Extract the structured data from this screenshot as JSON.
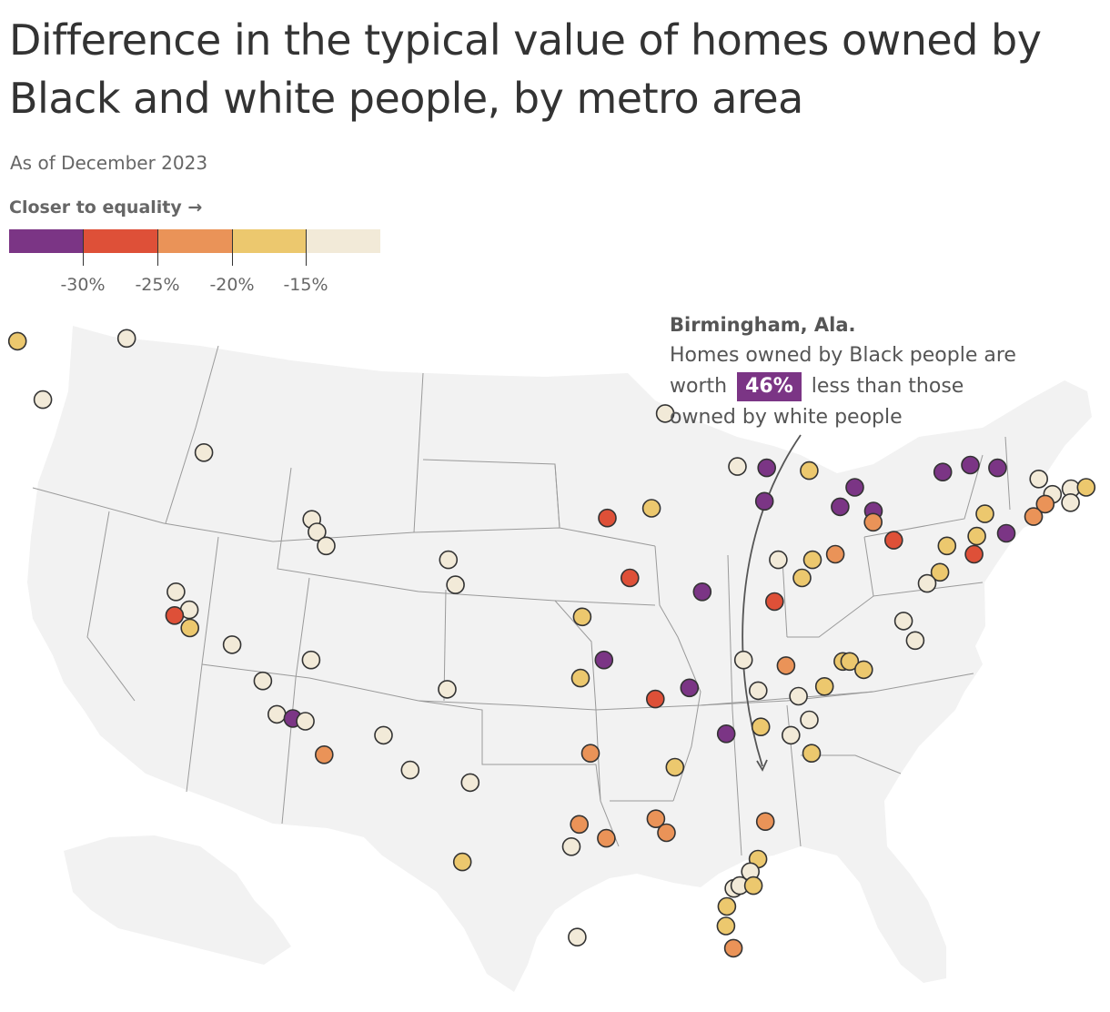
{
  "title": "Difference in the typical value of homes owned by Black and white people, by metro area",
  "subtitle": "As of December 2023",
  "legend": {
    "title": "Closer to equality →",
    "colors": [
      "#7b3585",
      "#de5038",
      "#ea9358",
      "#ecc86e",
      "#f2ead8"
    ],
    "ticks": [
      "-30%",
      "-25%",
      "-20%",
      "-15%"
    ]
  },
  "annotation": {
    "city": "Birmingham, Ala.",
    "line1": "Homes owned by Black people are",
    "prefix": "worth",
    "value": "46%",
    "suffix": "less than those",
    "line3": "owned by white people"
  },
  "map": {
    "background_color": "#f2f2f2",
    "border_color": "#9a9a9a",
    "marker_outline": "#333333",
    "metros": [
      {
        "name": "Seattle",
        "lon": -122.3,
        "lat": 47.6,
        "bin": 3
      },
      {
        "name": "Spokane",
        "lon": -117.4,
        "lat": 47.7,
        "bin": 4
      },
      {
        "name": "Portland",
        "lon": -122.7,
        "lat": 45.5,
        "bin": 4
      },
      {
        "name": "Boise",
        "lon": -116.2,
        "lat": 43.6,
        "bin": 4
      },
      {
        "name": "Sacramento",
        "lon": -121.5,
        "lat": 38.6,
        "bin": 4
      },
      {
        "name": "Stockton",
        "lon": -121.3,
        "lat": 37.95,
        "bin": 4
      },
      {
        "name": "San Francisco",
        "lon": -122.4,
        "lat": 37.75,
        "bin": 1
      },
      {
        "name": "San Jose",
        "lon": -121.9,
        "lat": 37.3,
        "bin": 3
      },
      {
        "name": "Fresno",
        "lon": -119.8,
        "lat": 36.7,
        "bin": 4
      },
      {
        "name": "Bakersfield",
        "lon": -119.0,
        "lat": 35.4,
        "bin": 4
      },
      {
        "name": "Oxnard",
        "lon": -119.2,
        "lat": 34.2,
        "bin": 4
      },
      {
        "name": "Los Angeles",
        "lon": -118.2,
        "lat": 34.05,
        "bin": 0
      },
      {
        "name": "Riverside",
        "lon": -117.4,
        "lat": 33.95,
        "bin": 4
      },
      {
        "name": "San Diego",
        "lon": -117.15,
        "lat": 32.75,
        "bin": 2
      },
      {
        "name": "Las Vegas",
        "lon": -115.15,
        "lat": 36.15,
        "bin": 4
      },
      {
        "name": "Phoenix",
        "lon": -112.1,
        "lat": 33.45,
        "bin": 4
      },
      {
        "name": "Tucson",
        "lon": -110.95,
        "lat": 32.2,
        "bin": 4
      },
      {
        "name": "Ogden",
        "lon": -111.95,
        "lat": 41.2,
        "bin": 4
      },
      {
        "name": "Salt Lake City",
        "lon": -111.9,
        "lat": 40.75,
        "bin": 4
      },
      {
        "name": "Provo",
        "lon": -111.65,
        "lat": 40.25,
        "bin": 4
      },
      {
        "name": "Denver",
        "lon": -104.95,
        "lat": 39.75,
        "bin": 4
      },
      {
        "name": "Colorado Springs",
        "lon": -104.8,
        "lat": 38.85,
        "bin": 4
      },
      {
        "name": "Albuquerque",
        "lon": -106.65,
        "lat": 35.1,
        "bin": 4
      },
      {
        "name": "El Paso",
        "lon": -106.45,
        "lat": 31.75,
        "bin": 4
      },
      {
        "name": "Honolulu",
        "lon": -108.8,
        "lat": 28.9,
        "bin": 3
      },
      {
        "name": "Omaha",
        "lon": -95.95,
        "lat": 41.25,
        "bin": 1
      },
      {
        "name": "Des Moines",
        "lon": -93.6,
        "lat": 41.6,
        "bin": 3
      },
      {
        "name": "Kansas City",
        "lon": -94.55,
        "lat": 39.1,
        "bin": 1
      },
      {
        "name": "Wichita",
        "lon": -97.35,
        "lat": 37.7,
        "bin": 3
      },
      {
        "name": "Tulsa",
        "lon": -95.95,
        "lat": 36.15,
        "bin": 0
      },
      {
        "name": "Oklahoma City",
        "lon": -97.5,
        "lat": 35.5,
        "bin": 3
      },
      {
        "name": "Minneapolis",
        "lon": -93.3,
        "lat": 45.0,
        "bin": 4
      },
      {
        "name": "Madison",
        "lon": -89.4,
        "lat": 43.1,
        "bin": 4
      },
      {
        "name": "Milwaukee",
        "lon": -87.9,
        "lat": 43.05,
        "bin": 0
      },
      {
        "name": "Chicago",
        "lon": -87.65,
        "lat": 41.85,
        "bin": 0
      },
      {
        "name": "Grand Rapids",
        "lon": -85.7,
        "lat": 42.95,
        "bin": 3
      },
      {
        "name": "Detroit",
        "lon": -83.1,
        "lat": 42.35,
        "bin": 0
      },
      {
        "name": "Toledo",
        "lon": -83.55,
        "lat": 41.65,
        "bin": 0
      },
      {
        "name": "Cleveland",
        "lon": -81.7,
        "lat": 41.5,
        "bin": 0
      },
      {
        "name": "Akron",
        "lon": -81.5,
        "lat": 41.1,
        "bin": 2
      },
      {
        "name": "Columbus",
        "lon": -83.0,
        "lat": 39.95,
        "bin": 2
      },
      {
        "name": "Dayton",
        "lon": -84.2,
        "lat": 39.75,
        "bin": 3
      },
      {
        "name": "Cincinnati",
        "lon": -84.5,
        "lat": 39.1,
        "bin": 3
      },
      {
        "name": "Indianapolis",
        "lon": -86.15,
        "lat": 39.75,
        "bin": 4
      },
      {
        "name": "Louisville",
        "lon": -85.75,
        "lat": 38.25,
        "bin": 1
      },
      {
        "name": "St. Louis",
        "lon": -90.2,
        "lat": 38.6,
        "bin": 0
      },
      {
        "name": "Pittsburgh",
        "lon": -80.0,
        "lat": 40.45,
        "bin": 1
      },
      {
        "name": "Buffalo",
        "lon": -78.85,
        "lat": 42.9,
        "bin": 0
      },
      {
        "name": "Rochester",
        "lon": -77.6,
        "lat": 43.15,
        "bin": 0
      },
      {
        "name": "Syracuse",
        "lon": -76.15,
        "lat": 43.05,
        "bin": 0
      },
      {
        "name": "Albany",
        "lon": -73.75,
        "lat": 42.65,
        "bin": 4
      },
      {
        "name": "Worcester",
        "lon": -71.8,
        "lat": 42.3,
        "bin": 4
      },
      {
        "name": "Boston",
        "lon": -71.05,
        "lat": 42.35,
        "bin": 3
      },
      {
        "name": "Springfield MA",
        "lon": -72.6,
        "lat": 42.1,
        "bin": 4
      },
      {
        "name": "Providence",
        "lon": -71.4,
        "lat": 41.8,
        "bin": 4
      },
      {
        "name": "Hartford",
        "lon": -72.7,
        "lat": 41.75,
        "bin": 2
      },
      {
        "name": "New Haven",
        "lon": -72.95,
        "lat": 41.3,
        "bin": 2
      },
      {
        "name": "New York",
        "lon": -73.95,
        "lat": 40.7,
        "bin": 0
      },
      {
        "name": "Allentown",
        "lon": -75.5,
        "lat": 40.6,
        "bin": 3
      },
      {
        "name": "Scranton",
        "lon": -75.65,
        "lat": 41.4,
        "bin": 3
      },
      {
        "name": "Harrisburg",
        "lon": -76.9,
        "lat": 40.25,
        "bin": 3
      },
      {
        "name": "Philadelphia",
        "lon": -75.15,
        "lat": 39.95,
        "bin": 1
      },
      {
        "name": "Baltimore",
        "lon": -76.6,
        "lat": 39.3,
        "bin": 3
      },
      {
        "name": "Washington",
        "lon": -77.05,
        "lat": 38.9,
        "bin": 4
      },
      {
        "name": "Richmond",
        "lon": -77.45,
        "lat": 37.55,
        "bin": 4
      },
      {
        "name": "Virginia Beach",
        "lon": -76.15,
        "lat": 36.85,
        "bin": 4
      },
      {
        "name": "Winston-Salem",
        "lon": -80.25,
        "lat": 36.1,
        "bin": 3
      },
      {
        "name": "Greensboro",
        "lon": -79.8,
        "lat": 36.1,
        "bin": 3
      },
      {
        "name": "Raleigh",
        "lon": -78.65,
        "lat": 35.8,
        "bin": 3
      },
      {
        "name": "Charlotte",
        "lon": -80.85,
        "lat": 35.2,
        "bin": 3
      },
      {
        "name": "Greenville",
        "lon": -82.4,
        "lat": 34.85,
        "bin": 4
      },
      {
        "name": "Columbia",
        "lon": -81.05,
        "lat": 34.0,
        "bin": 4
      },
      {
        "name": "Augusta",
        "lon": -82.0,
        "lat": 33.45,
        "bin": 4
      },
      {
        "name": "Charleston",
        "lon": -79.95,
        "lat": 32.8,
        "bin": 3
      },
      {
        "name": "Knoxville",
        "lon": -83.9,
        "lat": 35.95,
        "bin": 2
      },
      {
        "name": "Nashville",
        "lon": -86.8,
        "lat": 36.15,
        "bin": 4
      },
      {
        "name": "Chattanooga",
        "lon": -85.3,
        "lat": 35.05,
        "bin": 4
      },
      {
        "name": "Atlanta",
        "lon": -84.4,
        "lat": 33.75,
        "bin": 3
      },
      {
        "name": "Birmingham",
        "lon": -86.8,
        "lat": 33.5,
        "bin": 0
      },
      {
        "name": "Memphis",
        "lon": -90.05,
        "lat": 35.15,
        "bin": 0
      },
      {
        "name": "Little Rock",
        "lon": -92.3,
        "lat": 34.75,
        "bin": 1
      },
      {
        "name": "Jackson",
        "lon": -90.2,
        "lat": 32.3,
        "bin": 3
      },
      {
        "name": "Baton Rouge",
        "lon": -91.15,
        "lat": 30.45,
        "bin": 2
      },
      {
        "name": "New Orleans",
        "lon": -90.05,
        "lat": 29.95,
        "bin": 2
      },
      {
        "name": "Dallas",
        "lon": -96.8,
        "lat": 32.8,
        "bin": 2
      },
      {
        "name": "Austin",
        "lon": -97.75,
        "lat": 30.25,
        "bin": 2
      },
      {
        "name": "San Antonio",
        "lon": -98.5,
        "lat": 29.45,
        "bin": 4
      },
      {
        "name": "Houston",
        "lon": -95.35,
        "lat": 29.75,
        "bin": 2
      },
      {
        "name": "McAllen",
        "lon": -98.2,
        "lat": 26.2,
        "bin": 4
      },
      {
        "name": "Jacksonville",
        "lon": -81.65,
        "lat": 30.35,
        "bin": 2
      },
      {
        "name": "Deltona",
        "lon": -81.1,
        "lat": 29.0,
        "bin": 3
      },
      {
        "name": "Orlando",
        "lon": -81.4,
        "lat": 28.55,
        "bin": 4
      },
      {
        "name": "Tampa",
        "lon": -82.45,
        "lat": 27.95,
        "bin": 4
      },
      {
        "name": "Lakeland",
        "lon": -81.95,
        "lat": 28.05,
        "bin": 4
      },
      {
        "name": "Palm Bay",
        "lon": -80.6,
        "lat": 28.05,
        "bin": 3
      },
      {
        "name": "Sarasota",
        "lon": -82.55,
        "lat": 27.3,
        "bin": 3
      },
      {
        "name": "Cape Coral",
        "lon": -81.95,
        "lat": 26.6,
        "bin": 3
      },
      {
        "name": "Miami",
        "lon": -80.2,
        "lat": 25.8,
        "bin": 2
      }
    ]
  }
}
